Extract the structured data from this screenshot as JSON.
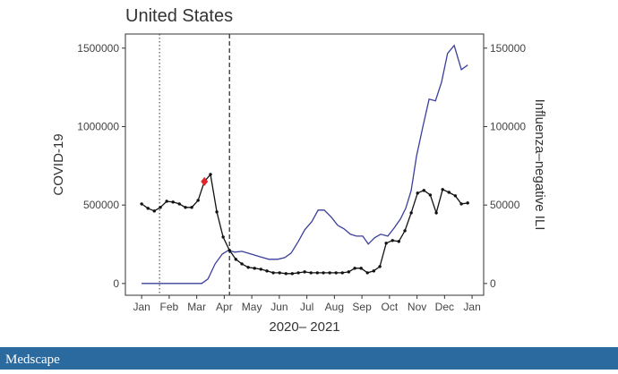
{
  "chart_data": {
    "type": "line",
    "title": "United States",
    "xlabel": "2020– 2021",
    "ylabel": "COVID-19",
    "y2label": "Influenza–negative ILI",
    "xlim": [
      0.41,
      13.42
    ],
    "xticks": [
      {
        "value": 1,
        "label": "Jan"
      },
      {
        "value": 2,
        "label": "Feb"
      },
      {
        "value": 3,
        "label": "Mar"
      },
      {
        "value": 4,
        "label": "Apr"
      },
      {
        "value": 5,
        "label": "May"
      },
      {
        "value": 6,
        "label": "Jun"
      },
      {
        "value": 7,
        "label": "Jul"
      },
      {
        "value": 8,
        "label": "Aug"
      },
      {
        "value": 9,
        "label": "Sep"
      },
      {
        "value": 10,
        "label": "Oct"
      },
      {
        "value": 11,
        "label": "Nov"
      },
      {
        "value": 12,
        "label": "Dec"
      },
      {
        "value": 13,
        "label": "Jan"
      }
    ],
    "ylim": [
      -75000,
      1590000
    ],
    "yticks": [
      0,
      500000,
      1000000,
      1500000
    ],
    "y2lim": [
      -7500,
      159000
    ],
    "y2ticks": [
      0,
      50000,
      100000,
      150000
    ],
    "vlines": [
      {
        "x": 1.65,
        "style": "dotted"
      },
      {
        "x": 4.19,
        "style": "dashed"
      }
    ],
    "series": [
      {
        "color": "#3b3f9a",
        "markers": false,
        "x": [
          1.0,
          3.18,
          3.41,
          3.67,
          3.93,
          4.15,
          4.38,
          4.64,
          4.97,
          5.29,
          5.62,
          5.94,
          6.2,
          6.43,
          6.69,
          6.92,
          7.18,
          7.41,
          7.63,
          7.89,
          8.12,
          8.35,
          8.58,
          8.8,
          9.03,
          9.23,
          9.46,
          9.68,
          9.94,
          10.17,
          10.4,
          10.59,
          10.79,
          10.98,
          11.21,
          11.44,
          11.67,
          11.89,
          12.11,
          12.35,
          12.61,
          12.84
        ],
        "values": [
          0,
          0,
          28500,
          125000,
          188000,
          211000,
          200000,
          205000,
          188000,
          171000,
          154000,
          154000,
          165000,
          194000,
          268000,
          342000,
          394000,
          468000,
          468000,
          422000,
          371000,
          348000,
          314000,
          302000,
          302000,
          251000,
          291000,
          314000,
          302000,
          354000,
          411000,
          479000,
          593000,
          810000,
          998000,
          1175000,
          1164000,
          1283000,
          1466000,
          1517000,
          1363000,
          1392000
        ]
      },
      {
        "color": "#111111",
        "markers": true,
        "axis": "y2",
        "x": [
          1.0,
          1.23,
          1.46,
          1.68,
          1.91,
          2.14,
          2.37,
          2.59,
          2.82,
          3.05,
          3.28,
          3.5,
          3.73,
          3.96,
          4.19,
          4.42,
          4.64,
          4.87,
          5.1,
          5.33,
          5.55,
          5.78,
          6.01,
          6.24,
          6.47,
          6.69,
          6.92,
          7.15,
          7.38,
          7.6,
          7.83,
          8.06,
          8.29,
          8.52,
          8.74,
          8.97,
          9.2,
          9.43,
          9.65,
          9.88,
          10.11,
          10.34,
          10.56,
          10.79,
          11.02,
          11.25,
          11.48,
          11.7,
          11.93,
          12.16,
          12.39,
          12.61,
          12.84
        ],
        "values": [
          50700,
          47900,
          46200,
          48500,
          52400,
          51900,
          50700,
          48500,
          48500,
          53000,
          65000,
          69500,
          45600,
          29600,
          21100,
          15400,
          12500,
          10300,
          9700,
          9100,
          8000,
          6800,
          6800,
          6300,
          6300,
          6800,
          7400,
          6800,
          6800,
          6800,
          6800,
          6800,
          6800,
          7400,
          9700,
          9700,
          6800,
          8000,
          10800,
          25700,
          27400,
          26800,
          33600,
          45000,
          57600,
          59300,
          56400,
          45000,
          59900,
          58100,
          55900,
          50700,
          51300
        ]
      }
    ],
    "highlight": {
      "x": 3.28,
      "value": 65000,
      "axis": "y2",
      "color": "#e0262b"
    }
  },
  "footer": {
    "brand": "Medscape"
  }
}
